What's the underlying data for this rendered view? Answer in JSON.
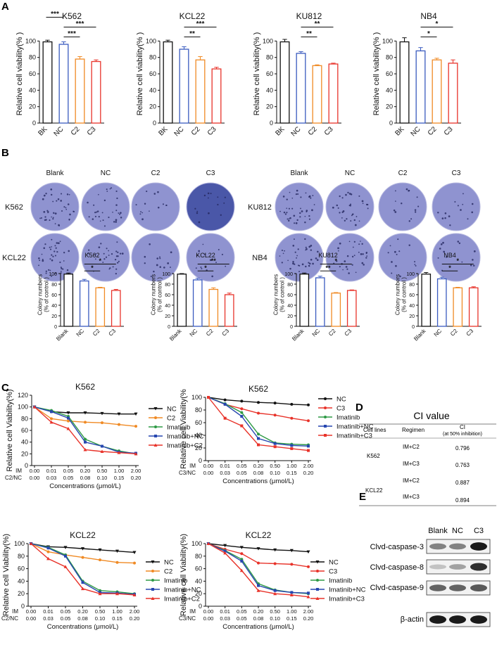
{
  "panel_labels": {
    "a": "A",
    "b": "B",
    "c": "C",
    "d": "D",
    "e": "E"
  },
  "colors": {
    "BK": "#111111",
    "NC": "#3a5bbf",
    "C2": "#f08a24",
    "C3": "#e8332a",
    "Imatinib": "#2e9a45",
    "ImNC": "#2747b0",
    "ImC": "#e8332a",
    "colony": "#8a8fcf"
  },
  "chart_data": [
    {
      "type": "bar",
      "id": "A-K562",
      "title": "K562",
      "ylabel": "Relative cell viability(% )",
      "categories": [
        "BK",
        "NC",
        "C2",
        "C3"
      ],
      "values": [
        99,
        96,
        78,
        75
      ],
      "errors": [
        2,
        3,
        3,
        2
      ],
      "ylim": [
        0,
        120
      ],
      "yticks": [
        0,
        20,
        40,
        60,
        80,
        100
      ],
      "sig": [
        {
          "from": 1,
          "to": 2,
          "label": "***"
        },
        {
          "from": 1,
          "to": 3,
          "label": "***"
        },
        {
          "from": 0,
          "to": 1,
          "label": "***"
        }
      ]
    },
    {
      "type": "bar",
      "id": "A-KCL22",
      "title": "KCL22",
      "ylabel": "Relative cell viability(% )",
      "categories": [
        "BK",
        "NC",
        "C2",
        "C3"
      ],
      "values": [
        99,
        90,
        77,
        66
      ],
      "errors": [
        2,
        3,
        4,
        2
      ],
      "ylim": [
        0,
        120
      ],
      "yticks": [
        0,
        20,
        40,
        60,
        80,
        100
      ],
      "sig": [
        {
          "from": 1,
          "to": 2,
          "label": "**"
        },
        {
          "from": 1,
          "to": 3,
          "label": "***"
        }
      ]
    },
    {
      "type": "bar",
      "id": "A-KU812",
      "title": "KU812",
      "ylabel": "Relative cell viability(% )",
      "categories": [
        "BK",
        "NC",
        "C2",
        "C3"
      ],
      "values": [
        99,
        85,
        70,
        72
      ],
      "errors": [
        3,
        2,
        1,
        1
      ],
      "ylim": [
        0,
        120
      ],
      "yticks": [
        0,
        20,
        40,
        60,
        80,
        100
      ],
      "sig": [
        {
          "from": 1,
          "to": 2,
          "label": "**"
        },
        {
          "from": 1,
          "to": 3,
          "label": "**"
        }
      ]
    },
    {
      "type": "bar",
      "id": "A-NB4",
      "title": "NB4",
      "ylabel": "Relative cell viability(% )",
      "categories": [
        "BK",
        "NC",
        "C2",
        "C3"
      ],
      "values": [
        99,
        88,
        77,
        73
      ],
      "errors": [
        5,
        4,
        2,
        4
      ],
      "ylim": [
        0,
        120
      ],
      "yticks": [
        0,
        20,
        40,
        60,
        80,
        100
      ],
      "sig": [
        {
          "from": 1,
          "to": 2,
          "label": "*"
        },
        {
          "from": 1,
          "to": 3,
          "label": "*"
        }
      ]
    },
    {
      "type": "bar",
      "id": "B-K562",
      "title": "K562",
      "ylabel": "Colony numbers\n(% of control )",
      "categories": [
        "Blank",
        "NC",
        "C2",
        "C3"
      ],
      "values": [
        99,
        86,
        73,
        68
      ],
      "errors": [
        2,
        3,
        1,
        2
      ],
      "ylim": [
        0,
        120
      ],
      "yticks": [
        0,
        20,
        40,
        60,
        80,
        100
      ],
      "sig": [
        {
          "from": 1,
          "to": 2,
          "label": "*"
        },
        {
          "from": 1,
          "to": 3,
          "label": "*"
        }
      ]
    },
    {
      "type": "bar",
      "id": "B-KCL22",
      "title": "KCL22",
      "ylabel": "Colony numbers\n(% of control )",
      "categories": [
        "Blank",
        "NC",
        "C2",
        "C3"
      ],
      "values": [
        99,
        88,
        70,
        60
      ],
      "errors": [
        1,
        3,
        3,
        3
      ],
      "ylim": [
        0,
        120
      ],
      "yticks": [
        0,
        20,
        40,
        60,
        80,
        100
      ],
      "sig": [
        {
          "from": 1,
          "to": 2,
          "label": "*"
        },
        {
          "from": 1,
          "to": 3,
          "label": "**"
        }
      ]
    },
    {
      "type": "bar",
      "id": "B-KU812",
      "title": "KU812",
      "ylabel": "Colony numbers\n(% of control )",
      "categories": [
        "Blank",
        "NC",
        "C2",
        "C3"
      ],
      "values": [
        99,
        92,
        63,
        68
      ],
      "errors": [
        2,
        3,
        1,
        1
      ],
      "ylim": [
        0,
        120
      ],
      "yticks": [
        0,
        20,
        40,
        60,
        80,
        100
      ],
      "sig": [
        {
          "from": 1,
          "to": 2,
          "label": "**"
        },
        {
          "from": 1,
          "to": 3,
          "label": "*"
        }
      ]
    },
    {
      "type": "bar",
      "id": "B-NB4",
      "title": "NB4",
      "ylabel": "Colony numbers\n(% of control )",
      "categories": [
        "Blank",
        "NC",
        "C2",
        "C3"
      ],
      "values": [
        99,
        90,
        73,
        73
      ],
      "errors": [
        3,
        3,
        1,
        2
      ],
      "ylim": [
        0,
        120
      ],
      "yticks": [
        0,
        20,
        40,
        60,
        80,
        100
      ],
      "sig": [
        {
          "from": 1,
          "to": 2,
          "label": "*"
        },
        {
          "from": 1,
          "to": 3,
          "label": "*"
        }
      ]
    },
    {
      "type": "line",
      "id": "C-K562-C2",
      "title": "K562",
      "ylabel": "Relative cell Viability(%)",
      "xlabel": "Concentrations (μmol/L)",
      "im_label": "IM",
      "cpd_label": "C2/NC",
      "im_ticks": [
        "0.00",
        "0.01",
        "0.05",
        "0.20",
        "0.50",
        "1.00",
        "2.00"
      ],
      "cpd_ticks": [
        "0.00",
        "0.03",
        "0.05",
        "0.08",
        "0.10",
        "0.15",
        "0.20"
      ],
      "yticks": [
        0,
        20,
        40,
        60,
        80,
        100,
        120
      ],
      "ylim": [
        0,
        120
      ],
      "series": [
        {
          "name": "NC",
          "values": [
            100,
            92,
            90,
            90,
            89,
            88,
            88
          ],
          "marker": "tri_down"
        },
        {
          "name": "C2",
          "values": [
            100,
            80,
            76,
            74,
            73,
            70,
            67
          ],
          "marker": "circle"
        },
        {
          "name": "Imatinib",
          "values": [
            100,
            94,
            84,
            45,
            33,
            25,
            20
          ],
          "marker": "circle"
        },
        {
          "name": "Imatinib+NC",
          "values": [
            100,
            92,
            81,
            40,
            33,
            23,
            21
          ],
          "marker": "square"
        },
        {
          "name": "Imatinib+C2",
          "values": [
            100,
            74,
            63,
            27,
            24,
            22,
            20
          ],
          "marker": "tri_up"
        }
      ]
    },
    {
      "type": "line",
      "id": "C-K562-C3",
      "title": "K562",
      "ylabel": "Relative cell Viability(% ",
      "xlabel": "Concentrations (μmol/L)",
      "im_label": "IM",
      "cpd_label": "C3/NC",
      "im_ticks": [
        "0.00",
        "0.01",
        "0.05",
        "0.20",
        "0.50",
        "1.00",
        "2.00"
      ],
      "cpd_ticks": [
        "0.00",
        "0.03",
        "0.05",
        "0.08",
        "0.10",
        "0.15",
        "0.20"
      ],
      "yticks": [
        0,
        20,
        40,
        60,
        80,
        100
      ],
      "ylim": [
        0,
        100
      ],
      "series": [
        {
          "name": "NC",
          "values": [
            100,
            96,
            94,
            92,
            91,
            89,
            88
          ],
          "marker": "circle"
        },
        {
          "name": "C3",
          "values": [
            100,
            89,
            82,
            75,
            72,
            67,
            63
          ],
          "marker": "circle"
        },
        {
          "name": "Imatinib",
          "values": [
            100,
            90,
            76,
            42,
            28,
            26,
            25
          ],
          "marker": "circle"
        },
        {
          "name": "Imatinib+NC",
          "values": [
            100,
            89,
            70,
            35,
            27,
            24,
            23
          ],
          "marker": "square"
        },
        {
          "name": "Imatinib+C3",
          "values": [
            100,
            67,
            55,
            25,
            22,
            19,
            16
          ],
          "marker": "square"
        }
      ]
    },
    {
      "type": "line",
      "id": "C-KCL22-C2",
      "title": "KCL22",
      "ylabel": "Relative cell Viability(%)",
      "xlabel": "Concentrations (μmol/L)",
      "im_label": "IM",
      "cpd_label": "C2/NC",
      "im_ticks": [
        "0.00",
        "0.01",
        "0.05",
        "0.20",
        "0.50",
        "1.00",
        "2.00"
      ],
      "cpd_ticks": [
        "0.00",
        "0.03",
        "0.05",
        "0.08",
        "0.10",
        "0.15",
        "0.20"
      ],
      "yticks": [
        0,
        20,
        40,
        60,
        80,
        100
      ],
      "ylim": [
        0,
        100
      ],
      "series": [
        {
          "name": "NC",
          "values": [
            100,
            95,
            94,
            92,
            90,
            88,
            86
          ],
          "marker": "tri_down"
        },
        {
          "name": "C2",
          "values": [
            100,
            87,
            82,
            78,
            74,
            70,
            69
          ],
          "marker": "circle"
        },
        {
          "name": "Imatinib",
          "values": [
            100,
            94,
            82,
            40,
            25,
            23,
            20
          ],
          "marker": "circle"
        },
        {
          "name": "Imatinib+NC",
          "values": [
            100,
            93,
            80,
            38,
            22,
            21,
            19
          ],
          "marker": "square"
        },
        {
          "name": "Imatinib+C2",
          "values": [
            100,
            76,
            63,
            28,
            20,
            20,
            18
          ],
          "marker": "tri_up"
        }
      ]
    },
    {
      "type": "line",
      "id": "C-KCL22-C3",
      "title": "KCL22",
      "ylabel": "Relative cell Viability(%)",
      "xlabel": "Concentrations (μmol/L)",
      "im_label": "IM",
      "cpd_label": "C3/NC",
      "im_ticks": [
        "0.00",
        "0.01",
        "0.05",
        "0.20",
        "0.50",
        "1.00",
        "2.00"
      ],
      "cpd_ticks": [
        "0.00",
        "0.03",
        "0.05",
        "0.08",
        "0.10",
        "0.15",
        "0.20"
      ],
      "yticks": [
        0,
        20,
        40,
        60,
        80,
        100
      ],
      "ylim": [
        0,
        100
      ],
      "series": [
        {
          "name": "NC",
          "values": [
            100,
            97,
            94,
            92,
            90,
            89,
            87
          ],
          "marker": "tri_down"
        },
        {
          "name": "C3",
          "values": [
            100,
            91,
            84,
            69,
            68,
            67,
            63
          ],
          "marker": "circle"
        },
        {
          "name": "Imatinib",
          "values": [
            100,
            89,
            75,
            36,
            26,
            22,
            20
          ],
          "marker": "circle"
        },
        {
          "name": "Imatinib+NC",
          "values": [
            100,
            88,
            72,
            33,
            25,
            22,
            21
          ],
          "marker": "square"
        },
        {
          "name": "Imatinib+C3",
          "values": [
            100,
            85,
            57,
            25,
            20,
            18,
            15
          ],
          "marker": "tri_up"
        }
      ]
    }
  ],
  "colony": {
    "left": {
      "headers": [
        "Blank",
        "NC",
        "C2",
        "C3"
      ],
      "rows": [
        "K562",
        "KCL22"
      ]
    },
    "right": {
      "headers": [
        "Blank",
        "NC",
        "C2",
        "C3"
      ],
      "rows": [
        "KU812",
        "NB4"
      ]
    }
  },
  "ci_table": {
    "title": "CI value",
    "headers": [
      "Cell lines",
      "Regimen",
      "CI",
      "(at 50% inhibition)"
    ],
    "rows": [
      {
        "cell": "K562",
        "regimen": "IM+C2",
        "ci": "0.796"
      },
      {
        "cell": "",
        "regimen": "IM+C3",
        "ci": "0.763"
      },
      {
        "cell": "KCL22",
        "regimen": "IM+C2",
        "ci": "0.887"
      },
      {
        "cell": "",
        "regimen": "IM+C3",
        "ci": "0.894"
      }
    ]
  },
  "western": {
    "headers": [
      "Blank",
      "NC",
      "C3"
    ],
    "rows": [
      {
        "label": "Clvd-caspase-3",
        "intensity": [
          0.45,
          0.45,
          0.95
        ]
      },
      {
        "label": "Clvd-caspase-8",
        "intensity": [
          0.15,
          0.3,
          0.85
        ]
      },
      {
        "label": "Clvd-caspase-9",
        "intensity": [
          0.6,
          0.6,
          0.65
        ]
      },
      {
        "label": "β-actin",
        "intensity": [
          0.95,
          0.95,
          0.95
        ]
      }
    ]
  }
}
